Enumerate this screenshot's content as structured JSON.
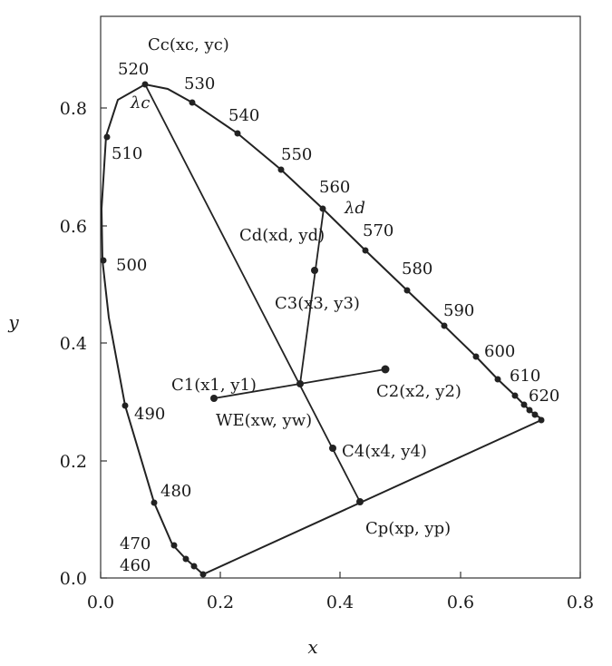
{
  "diagram": {
    "axes": {
      "x": {
        "label": "x",
        "ticks": [
          "0.0",
          "0.2",
          "0.4",
          "0.6",
          "0.8"
        ],
        "range": [
          0,
          0.8
        ]
      },
      "y": {
        "label": "y",
        "ticks": [
          "0.0",
          "0.2",
          "0.4",
          "0.6",
          "0.8"
        ],
        "range": [
          0,
          0.9
        ]
      }
    },
    "wavelength_labels": [
      "460",
      "470",
      "480",
      "490",
      "500",
      "510",
      "520",
      "530",
      "540",
      "550",
      "560",
      "570",
      "580",
      "590",
      "600",
      "610",
      "620"
    ],
    "lambda_labels": {
      "c": "λc",
      "d": "λd"
    },
    "points": {
      "Cc": "Cc(xc, yc)",
      "Cd": "Cd(xd, yd)",
      "C3": "C3(x3, y3)",
      "C1": "C1(x1, y1)",
      "C2": "C2(x2, y2)",
      "WE": "WE(xw, yw)",
      "C4": "C4(x4, y4)",
      "Cp": "Cp(xp, yp)"
    }
  }
}
